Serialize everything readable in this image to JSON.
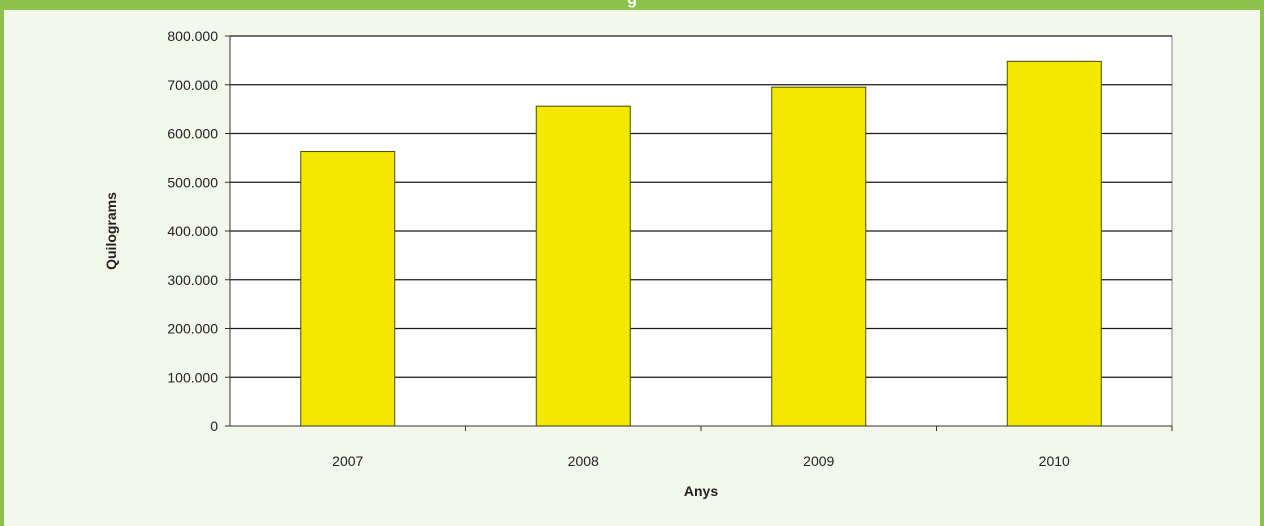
{
  "header": {
    "title": "g"
  },
  "chart_data": {
    "type": "bar",
    "categories": [
      "2007",
      "2008",
      "2009",
      "2010"
    ],
    "values": [
      563000,
      656000,
      695000,
      748000
    ],
    "title": "",
    "xlabel": "Anys",
    "ylabel": "Quilograms",
    "ylim": [
      0,
      800000
    ],
    "yticks": [
      "0",
      "100.000",
      "200.000",
      "300.000",
      "400.000",
      "500.000",
      "600.000",
      "700.000",
      "800.000"
    ],
    "grid": true,
    "legend": "none",
    "colors": {
      "bar": "#f3e900",
      "bar_edge": "#4a4a00",
      "grid": "#1a1a1a",
      "plot_bg": "#ffffff",
      "frame": "#8cc24a",
      "page_bg": "#f3f8ea"
    }
  }
}
